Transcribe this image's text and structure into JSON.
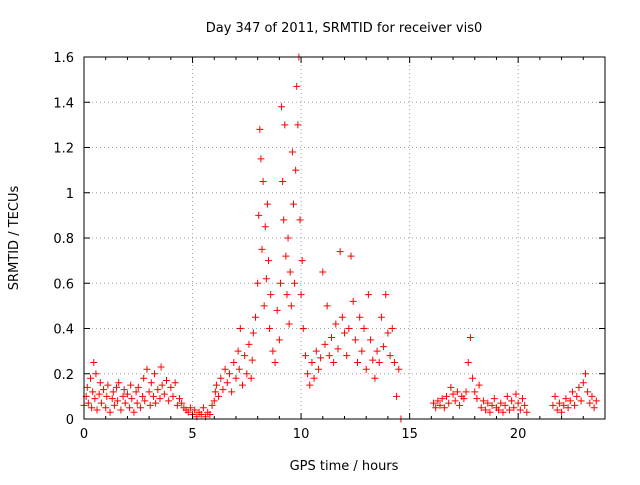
{
  "chart_data": {
    "type": "scatter",
    "title": "Day 347 of 2011, SRMTID for receiver vis0",
    "xlabel": "GPS time / hours",
    "ylabel": "SRMTID / TECUs",
    "xlim": [
      0,
      24
    ],
    "ylim": [
      0,
      1.6
    ],
    "xticks": [
      0,
      5,
      10,
      15,
      20
    ],
    "yticks": [
      0,
      0.2,
      0.4,
      0.6,
      0.8,
      1,
      1.2,
      1.4,
      1.6
    ],
    "xtick_labels": [
      "0",
      "5",
      "10",
      "15",
      "20"
    ],
    "ytick_labels": [
      "0",
      "0.2",
      "0.4",
      "0.6",
      "0.8",
      "1",
      "1.2",
      "1.4",
      "1.6"
    ],
    "grid": true,
    "marker": "+",
    "color": "#ff0000",
    "series": [
      {
        "name": "vis0",
        "points": [
          [
            0.0,
            0.06
          ],
          [
            0.1,
            0.1
          ],
          [
            0.15,
            0.14
          ],
          [
            0.2,
            0.07
          ],
          [
            0.3,
            0.18
          ],
          [
            0.35,
            0.05
          ],
          [
            0.4,
            0.12
          ],
          [
            0.45,
            0.25
          ],
          [
            0.5,
            0.09
          ],
          [
            0.55,
            0.2
          ],
          [
            0.6,
            0.04
          ],
          [
            0.7,
            0.11
          ],
          [
            0.75,
            0.16
          ],
          [
            0.8,
            0.07
          ],
          [
            0.9,
            0.13
          ],
          [
            1.0,
            0.05
          ],
          [
            1.05,
            0.1
          ],
          [
            1.1,
            0.15
          ],
          [
            1.2,
            0.03
          ],
          [
            1.3,
            0.09
          ],
          [
            1.35,
            0.12
          ],
          [
            1.4,
            0.06
          ],
          [
            1.5,
            0.14
          ],
          [
            1.55,
            0.08
          ],
          [
            1.6,
            0.16
          ],
          [
            1.7,
            0.04
          ],
          [
            1.8,
            0.1
          ],
          [
            1.85,
            0.13
          ],
          [
            1.9,
            0.07
          ],
          [
            2.0,
            0.11
          ],
          [
            2.1,
            0.05
          ],
          [
            2.15,
            0.15
          ],
          [
            2.2,
            0.09
          ],
          [
            2.3,
            0.03
          ],
          [
            2.4,
            0.12
          ],
          [
            2.45,
            0.07
          ],
          [
            2.5,
            0.14
          ],
          [
            2.6,
            0.05
          ],
          [
            2.7,
            0.1
          ],
          [
            2.75,
            0.18
          ],
          [
            2.8,
            0.08
          ],
          [
            2.9,
            0.22
          ],
          [
            3.0,
            0.12
          ],
          [
            3.05,
            0.06
          ],
          [
            3.1,
            0.16
          ],
          [
            3.2,
            0.1
          ],
          [
            3.25,
            0.2
          ],
          [
            3.3,
            0.07
          ],
          [
            3.4,
            0.13
          ],
          [
            3.5,
            0.09
          ],
          [
            3.55,
            0.23
          ],
          [
            3.6,
            0.15
          ],
          [
            3.7,
            0.11
          ],
          [
            3.8,
            0.17
          ],
          [
            3.9,
            0.08
          ],
          [
            4.0,
            0.14
          ],
          [
            4.1,
            0.1
          ],
          [
            4.2,
            0.16
          ],
          [
            4.3,
            0.06
          ],
          [
            4.4,
            0.09
          ],
          [
            4.5,
            0.07
          ],
          [
            4.6,
            0.05
          ],
          [
            4.7,
            0.04
          ],
          [
            4.8,
            0.03
          ],
          [
            4.9,
            0.05
          ],
          [
            5.0,
            0.02
          ],
          [
            5.1,
            0.04
          ],
          [
            5.2,
            0.01
          ],
          [
            5.3,
            0.03
          ],
          [
            5.4,
            0.02
          ],
          [
            5.5,
            0.05
          ],
          [
            5.6,
            0.01
          ],
          [
            5.7,
            0.03
          ],
          [
            5.8,
            0.02
          ],
          [
            5.9,
            0.06
          ],
          [
            6.0,
            0.08
          ],
          [
            6.05,
            0.12
          ],
          [
            6.1,
            0.15
          ],
          [
            6.2,
            0.1
          ],
          [
            6.3,
            0.18
          ],
          [
            6.4,
            0.13
          ],
          [
            6.5,
            0.22
          ],
          [
            6.6,
            0.16
          ],
          [
            6.7,
            0.2
          ],
          [
            6.8,
            0.12
          ],
          [
            6.9,
            0.25
          ],
          [
            7.0,
            0.18
          ],
          [
            7.1,
            0.3
          ],
          [
            7.15,
            0.22
          ],
          [
            7.2,
            0.4
          ],
          [
            7.3,
            0.15
          ],
          [
            7.4,
            0.28
          ],
          [
            7.5,
            0.2
          ],
          [
            7.6,
            0.33
          ],
          [
            7.7,
            0.18
          ],
          [
            7.75,
            0.26
          ],
          [
            7.8,
            0.38
          ],
          [
            7.9,
            0.45
          ],
          [
            8.0,
            0.6
          ],
          [
            8.05,
            0.9
          ],
          [
            8.1,
            1.28
          ],
          [
            8.15,
            1.15
          ],
          [
            8.2,
            0.75
          ],
          [
            8.25,
            1.05
          ],
          [
            8.3,
            0.5
          ],
          [
            8.35,
            0.85
          ],
          [
            8.4,
            0.62
          ],
          [
            8.45,
            0.95
          ],
          [
            8.5,
            0.7
          ],
          [
            8.55,
            0.4
          ],
          [
            8.6,
            0.55
          ],
          [
            8.7,
            0.3
          ],
          [
            8.8,
            0.25
          ],
          [
            8.9,
            0.48
          ],
          [
            9.0,
            0.35
          ],
          [
            9.05,
            0.6
          ],
          [
            9.1,
            1.38
          ],
          [
            9.15,
            1.05
          ],
          [
            9.2,
            0.88
          ],
          [
            9.25,
            1.3
          ],
          [
            9.3,
            0.72
          ],
          [
            9.35,
            0.55
          ],
          [
            9.4,
            0.8
          ],
          [
            9.45,
            0.42
          ],
          [
            9.5,
            0.65
          ],
          [
            9.55,
            0.5
          ],
          [
            9.6,
            1.18
          ],
          [
            9.65,
            0.95
          ],
          [
            9.7,
            0.6
          ],
          [
            9.75,
            1.1
          ],
          [
            9.8,
            1.47
          ],
          [
            9.85,
            1.3
          ],
          [
            9.9,
            1.6
          ],
          [
            9.95,
            0.88
          ],
          [
            10.0,
            0.55
          ],
          [
            10.05,
            0.7
          ],
          [
            10.1,
            0.4
          ],
          [
            10.2,
            0.28
          ],
          [
            10.3,
            0.2
          ],
          [
            10.4,
            0.15
          ],
          [
            10.5,
            0.25
          ],
          [
            10.6,
            0.18
          ],
          [
            10.7,
            0.3
          ],
          [
            10.8,
            0.22
          ],
          [
            10.9,
            0.27
          ],
          [
            11.0,
            0.65
          ],
          [
            11.1,
            0.33
          ],
          [
            11.2,
            0.5
          ],
          [
            11.3,
            0.28
          ],
          [
            11.4,
            0.36
          ],
          [
            11.5,
            0.25
          ],
          [
            11.6,
            0.42
          ],
          [
            11.7,
            0.31
          ],
          [
            11.8,
            0.74
          ],
          [
            11.9,
            0.45
          ],
          [
            12.0,
            0.38
          ],
          [
            12.1,
            0.28
          ],
          [
            12.2,
            0.4
          ],
          [
            12.3,
            0.72
          ],
          [
            12.4,
            0.52
          ],
          [
            12.5,
            0.35
          ],
          [
            12.6,
            0.25
          ],
          [
            12.7,
            0.45
          ],
          [
            12.8,
            0.3
          ],
          [
            12.9,
            0.4
          ],
          [
            13.0,
            0.22
          ],
          [
            13.1,
            0.55
          ],
          [
            13.2,
            0.35
          ],
          [
            13.3,
            0.26
          ],
          [
            13.4,
            0.18
          ],
          [
            13.5,
            0.3
          ],
          [
            13.6,
            0.25
          ],
          [
            13.7,
            0.45
          ],
          [
            13.8,
            0.32
          ],
          [
            13.9,
            0.55
          ],
          [
            14.0,
            0.38
          ],
          [
            14.1,
            0.28
          ],
          [
            14.2,
            0.4
          ],
          [
            14.3,
            0.25
          ],
          [
            14.4,
            0.1
          ],
          [
            14.5,
            0.22
          ],
          [
            14.6,
            0.0
          ],
          [
            16.1,
            0.07
          ],
          [
            16.2,
            0.05
          ],
          [
            16.3,
            0.08
          ],
          [
            16.4,
            0.06
          ],
          [
            16.5,
            0.09
          ],
          [
            16.6,
            0.05
          ],
          [
            16.7,
            0.1
          ],
          [
            16.8,
            0.07
          ],
          [
            16.9,
            0.14
          ],
          [
            17.0,
            0.11
          ],
          [
            17.1,
            0.08
          ],
          [
            17.2,
            0.12
          ],
          [
            17.3,
            0.06
          ],
          [
            17.4,
            0.1
          ],
          [
            17.5,
            0.09
          ],
          [
            17.6,
            0.12
          ],
          [
            17.7,
            0.25
          ],
          [
            17.8,
            0.36
          ],
          [
            17.9,
            0.18
          ],
          [
            18.0,
            0.12
          ],
          [
            18.1,
            0.09
          ],
          [
            18.2,
            0.15
          ],
          [
            18.3,
            0.05
          ],
          [
            18.4,
            0.08
          ],
          [
            18.5,
            0.04
          ],
          [
            18.6,
            0.07
          ],
          [
            18.7,
            0.03
          ],
          [
            18.8,
            0.06
          ],
          [
            18.9,
            0.09
          ],
          [
            19.0,
            0.05
          ],
          [
            19.1,
            0.04
          ],
          [
            19.2,
            0.07
          ],
          [
            19.3,
            0.03
          ],
          [
            19.4,
            0.06
          ],
          [
            19.5,
            0.1
          ],
          [
            19.6,
            0.04
          ],
          [
            19.7,
            0.08
          ],
          [
            19.8,
            0.05
          ],
          [
            19.9,
            0.11
          ],
          [
            20.0,
            0.07
          ],
          [
            20.1,
            0.04
          ],
          [
            20.2,
            0.09
          ],
          [
            20.3,
            0.06
          ],
          [
            20.4,
            0.03
          ],
          [
            21.6,
            0.06
          ],
          [
            21.7,
            0.1
          ],
          [
            21.8,
            0.04
          ],
          [
            21.9,
            0.07
          ],
          [
            22.0,
            0.03
          ],
          [
            22.1,
            0.06
          ],
          [
            22.2,
            0.09
          ],
          [
            22.3,
            0.05
          ],
          [
            22.4,
            0.08
          ],
          [
            22.5,
            0.12
          ],
          [
            22.6,
            0.06
          ],
          [
            22.7,
            0.1
          ],
          [
            22.8,
            0.14
          ],
          [
            22.9,
            0.08
          ],
          [
            23.0,
            0.16
          ],
          [
            23.1,
            0.2
          ],
          [
            23.2,
            0.12
          ],
          [
            23.3,
            0.07
          ],
          [
            23.4,
            0.1
          ],
          [
            23.5,
            0.05
          ],
          [
            23.6,
            0.08
          ]
        ]
      }
    ]
  }
}
